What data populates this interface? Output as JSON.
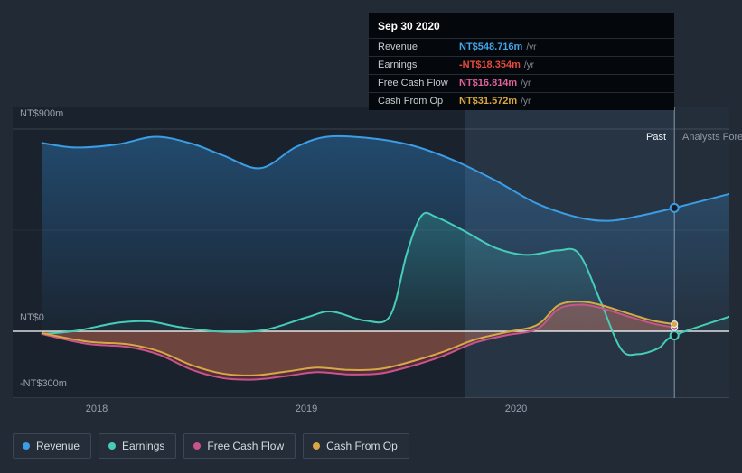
{
  "page": {
    "background": "#212a35"
  },
  "tooltip": {
    "date": "Sep 30 2020",
    "rows": [
      {
        "label": "Revenue",
        "value": "NT$548.716m",
        "suffix": "/yr",
        "color": "#42a6e8"
      },
      {
        "label": "Earnings",
        "value": "-NT$18.354m",
        "suffix": "/yr",
        "color": "#e84b3d"
      },
      {
        "label": "Free Cash Flow",
        "value": "NT$16.814m",
        "suffix": "/yr",
        "color": "#e0639c"
      },
      {
        "label": "Cash From Op",
        "value": "NT$31.572m",
        "suffix": "/yr",
        "color": "#d9a83e"
      }
    ]
  },
  "chart_data": {
    "type": "line",
    "unit": "NT$m",
    "xlim": [
      2017.6,
      2021.02
    ],
    "ylim": [
      -300,
      900
    ],
    "grid": true,
    "x_ticks": [
      {
        "x": 2018,
        "label": "2018"
      },
      {
        "x": 2019,
        "label": "2019"
      },
      {
        "x": 2020,
        "label": "2020"
      }
    ],
    "y_ticks": [
      {
        "value": 900,
        "label": "NT$900m"
      },
      {
        "value": 0,
        "label": "NT$0"
      },
      {
        "value": -300,
        "label": "-NT$300m"
      }
    ],
    "divider": {
      "x": 2020.755,
      "past_label": "Past",
      "future_label": "Analysts Forecasts"
    },
    "highlight_band": {
      "from": 2019.755,
      "to": 2020.755
    },
    "series": [
      {
        "name": "Revenue",
        "color": "#3b9de4",
        "fill_top": "rgba(45,125,190,0.50)",
        "fill_bottom": "rgba(45,125,190,0.03)",
        "marker": "ring",
        "end": [
          2020.755,
          548.716
        ],
        "points": [
          [
            2017.74,
            838
          ],
          [
            2017.9,
            818
          ],
          [
            2018.1,
            832
          ],
          [
            2018.28,
            866
          ],
          [
            2018.45,
            836
          ],
          [
            2018.6,
            784
          ],
          [
            2018.78,
            726
          ],
          [
            2018.95,
            820
          ],
          [
            2019.1,
            866
          ],
          [
            2019.3,
            860
          ],
          [
            2019.5,
            828
          ],
          [
            2019.7,
            762
          ],
          [
            2019.9,
            672
          ],
          [
            2020.1,
            568
          ],
          [
            2020.3,
            506
          ],
          [
            2020.45,
            492
          ],
          [
            2020.6,
            516
          ],
          [
            2020.755,
            548.716
          ],
          [
            2021.02,
            612
          ]
        ]
      },
      {
        "name": "Earnings",
        "color": "#46cdb9",
        "fill_top": "rgba(64,205,185,0.40)",
        "fill_bottom": "rgba(64,205,185,0.05)",
        "marker": "ring",
        "end": [
          2020.755,
          -18.354
        ],
        "points": [
          [
            2017.74,
            -12
          ],
          [
            2017.9,
            2
          ],
          [
            2018.1,
            38
          ],
          [
            2018.25,
            44
          ],
          [
            2018.4,
            18
          ],
          [
            2018.6,
            -2
          ],
          [
            2018.8,
            6
          ],
          [
            2019.0,
            62
          ],
          [
            2019.12,
            88
          ],
          [
            2019.28,
            48
          ],
          [
            2019.4,
            70
          ],
          [
            2019.48,
            350
          ],
          [
            2019.55,
            515
          ],
          [
            2019.62,
            508
          ],
          [
            2019.75,
            448
          ],
          [
            2019.9,
            372
          ],
          [
            2020.05,
            340
          ],
          [
            2020.2,
            360
          ],
          [
            2020.3,
            345
          ],
          [
            2020.4,
            140
          ],
          [
            2020.5,
            -78
          ],
          [
            2020.58,
            -102
          ],
          [
            2020.68,
            -75
          ],
          [
            2020.755,
            -18.354
          ],
          [
            2021.02,
            66
          ]
        ]
      },
      {
        "name": "Free Cash Flow",
        "color": "#c9548a",
        "fill_top": "rgba(198,62,92,0.33)",
        "fill_bottom": "rgba(198,62,92,0.33)",
        "marker": "solid",
        "end": [
          2020.755,
          16.814
        ],
        "points": [
          [
            2017.74,
            -12
          ],
          [
            2017.95,
            -55
          ],
          [
            2018.15,
            -70
          ],
          [
            2018.3,
            -105
          ],
          [
            2018.45,
            -170
          ],
          [
            2018.6,
            -208
          ],
          [
            2018.75,
            -215
          ],
          [
            2018.9,
            -200
          ],
          [
            2019.05,
            -182
          ],
          [
            2019.2,
            -192
          ],
          [
            2019.35,
            -188
          ],
          [
            2019.5,
            -155
          ],
          [
            2019.65,
            -110
          ],
          [
            2019.8,
            -52
          ],
          [
            2019.95,
            -18
          ],
          [
            2020.1,
            10
          ],
          [
            2020.2,
            98
          ],
          [
            2020.3,
            118
          ],
          [
            2020.4,
            105
          ],
          [
            2020.55,
            62
          ],
          [
            2020.65,
            35
          ],
          [
            2020.755,
            16.814
          ]
        ]
      },
      {
        "name": "Cash From Op",
        "color": "#d8a844",
        "fill_top": "rgba(216,168,66,0.20)",
        "fill_bottom": "rgba(216,168,66,0.20)",
        "marker": "solid",
        "end": [
          2020.755,
          31.572
        ],
        "points": [
          [
            2017.74,
            -8
          ],
          [
            2017.95,
            -45
          ],
          [
            2018.15,
            -58
          ],
          [
            2018.3,
            -90
          ],
          [
            2018.45,
            -150
          ],
          [
            2018.6,
            -188
          ],
          [
            2018.75,
            -196
          ],
          [
            2018.9,
            -180
          ],
          [
            2019.05,
            -162
          ],
          [
            2019.2,
            -172
          ],
          [
            2019.35,
            -168
          ],
          [
            2019.5,
            -135
          ],
          [
            2019.65,
            -92
          ],
          [
            2019.8,
            -38
          ],
          [
            2019.95,
            -5
          ],
          [
            2020.1,
            28
          ],
          [
            2020.2,
            115
          ],
          [
            2020.3,
            132
          ],
          [
            2020.4,
            118
          ],
          [
            2020.55,
            75
          ],
          [
            2020.65,
            48
          ],
          [
            2020.755,
            31.572
          ]
        ]
      }
    ]
  },
  "legend": {
    "items": [
      {
        "label": "Revenue"
      },
      {
        "label": "Earnings"
      },
      {
        "label": "Free Cash Flow"
      },
      {
        "label": "Cash From Op"
      }
    ]
  }
}
